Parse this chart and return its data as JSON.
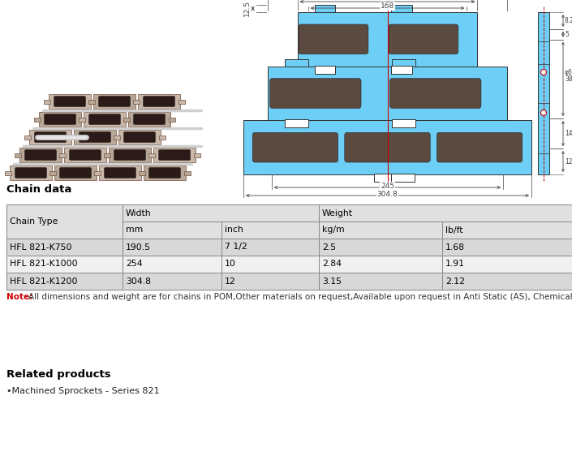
{
  "chain_data_title": "Chain data",
  "table_rows": [
    [
      "HFL 821-K750",
      "190.5",
      "7 1/2",
      "2.5",
      "1.68"
    ],
    [
      "HFL 821-K1000",
      "254",
      "10",
      "2.84",
      "1.91"
    ],
    [
      "HFL 821-K1200",
      "304.8",
      "12",
      "3.15",
      "2.12"
    ]
  ],
  "note_label": "Note:",
  "note_text": "All dimensions and weight are for chains in POM,Other materials on request,Available upon request in Anti Static (AS), Chemical resistant (PPB) Wear resistant Polyamid (WRP)",
  "related_title": "Related products",
  "related_item": "•Machined Sprockets - Series 821",
  "bg_color": "#ffffff",
  "chain_blue": "#6dcff6",
  "slot_color": "#5a4a40",
  "dim_color": "#444444",
  "note_red": "#cc0000",
  "table_border": "#888888",
  "hdr_bg": "#e0e0e0",
  "row_bg_odd": "#d8d8d8",
  "row_bg_even": "#f0f0f0"
}
